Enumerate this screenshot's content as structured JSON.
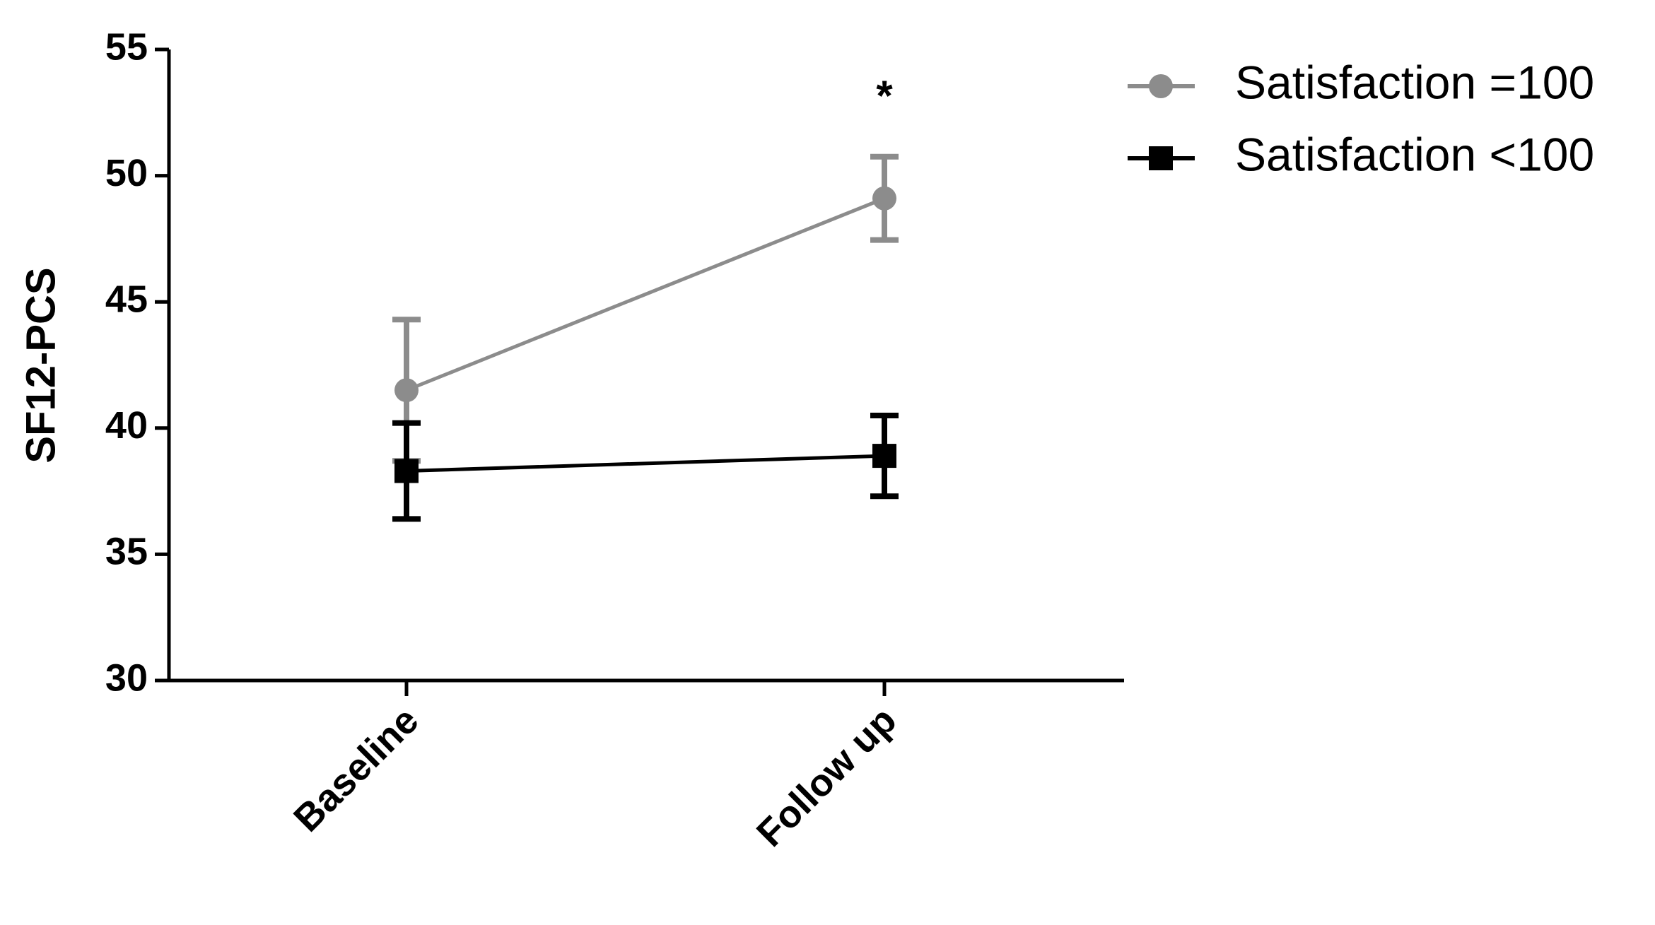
{
  "chart_data": {
    "type": "line",
    "y_label": "SF12-PCS",
    "annotation": "*",
    "categories": [
      "Baseline",
      "Follow up"
    ],
    "series": [
      {
        "name": "Satisfaction =100",
        "color": "#8c8c8c",
        "marker": "circle",
        "values": [
          41.5,
          49.1
        ],
        "errors": [
          2.8,
          1.65
        ]
      },
      {
        "name": "Satisfaction <100",
        "color": "#000000",
        "marker": "square",
        "values": [
          38.3,
          38.9
        ],
        "errors": [
          1.9,
          1.6
        ]
      }
    ],
    "ylim": [
      30,
      55
    ],
    "yticks": [
      30,
      35,
      40,
      45,
      50,
      55
    ]
  }
}
